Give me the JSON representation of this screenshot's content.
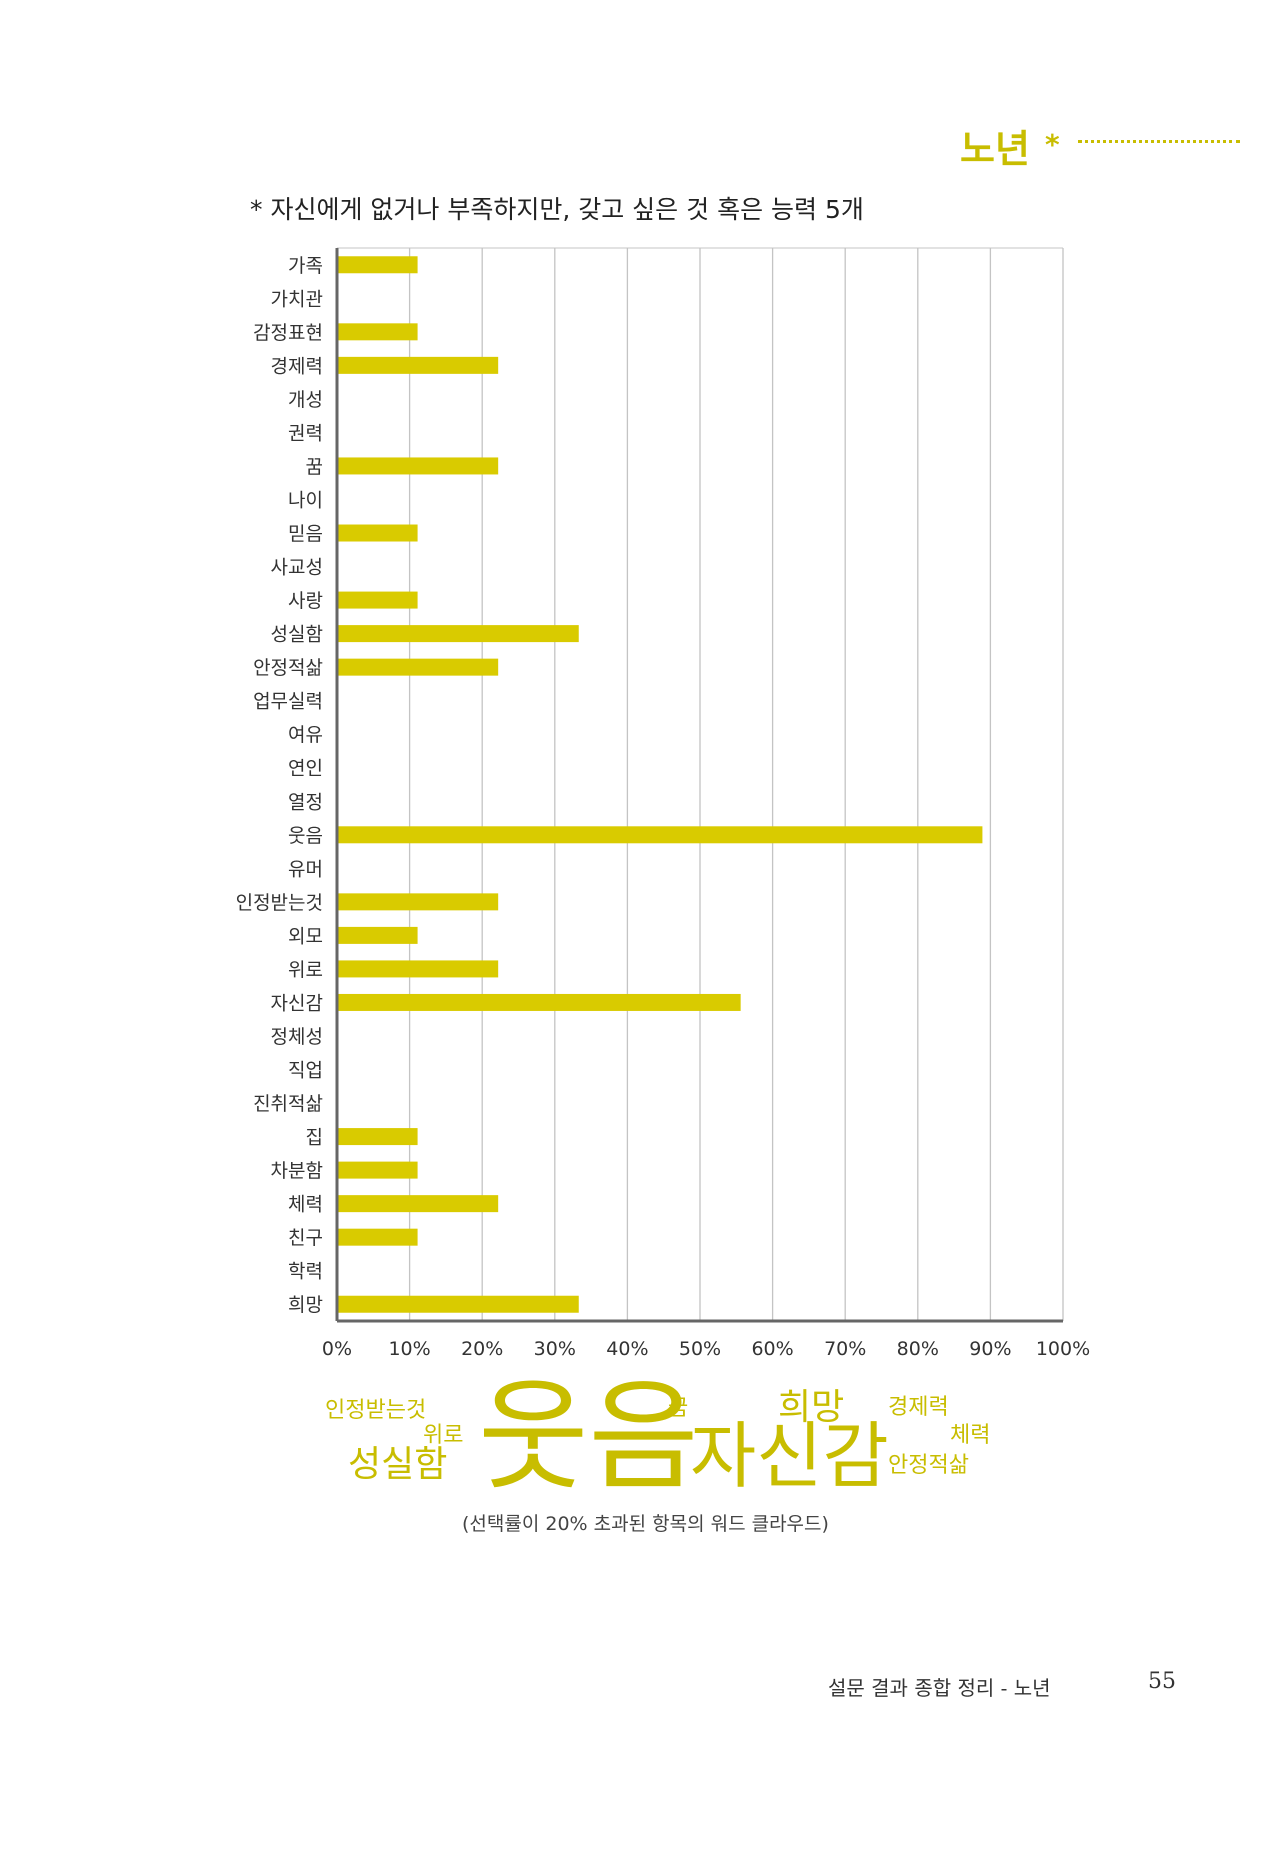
{
  "header": {
    "section": "노년",
    "star": "*"
  },
  "chart_data": {
    "type": "bar",
    "orientation": "horizontal",
    "title": "* 자신에게 없거나 부족하지만, 갖고 싶은 것 혹은 능력 5개",
    "categories": [
      "가족",
      "가치관",
      "감정표현",
      "경제력",
      "개성",
      "권력",
      "꿈",
      "나이",
      "믿음",
      "사교성",
      "사랑",
      "성실함",
      "안정적삶",
      "업무실력",
      "여유",
      "연인",
      "열정",
      "웃음",
      "유머",
      "인정받는것",
      "외모",
      "위로",
      "자신감",
      "정체성",
      "직업",
      "진취적삶",
      "집",
      "차분함",
      "체력",
      "친구",
      "학력",
      "희망"
    ],
    "values": [
      11.1,
      0,
      11.1,
      22.2,
      0,
      0,
      22.2,
      0,
      11.1,
      0,
      11.1,
      33.3,
      22.2,
      0,
      0,
      0,
      0,
      88.9,
      0,
      22.2,
      11.1,
      22.2,
      55.6,
      0,
      0,
      0,
      11.1,
      11.1,
      22.2,
      11.1,
      0,
      33.3
    ],
    "xlim": [
      0,
      100
    ],
    "ticks": [
      "0%",
      "10%",
      "20%",
      "30%",
      "40%",
      "50%",
      "60%",
      "70%",
      "80%",
      "90%",
      "100%"
    ],
    "bar_color": "#d9cb00",
    "grid": true
  },
  "word_cloud": [
    {
      "text": "인정받는것",
      "size": 22
    },
    {
      "text": "위로",
      "size": 22
    },
    {
      "text": "성실함",
      "size": 36
    },
    {
      "text": "웃음",
      "size": 120
    },
    {
      "text": "꿈",
      "size": 22
    },
    {
      "text": "희망",
      "size": 36
    },
    {
      "text": "자신감",
      "size": 72
    },
    {
      "text": "경제력",
      "size": 22
    },
    {
      "text": "체력",
      "size": 22
    },
    {
      "text": "안정적삶",
      "size": 22
    }
  ],
  "caption": "(선택률이 20% 초과된 항목의 워드 클라우드)",
  "footer": {
    "title": "설문 결과 종합 정리 - 노년",
    "page": "55"
  }
}
